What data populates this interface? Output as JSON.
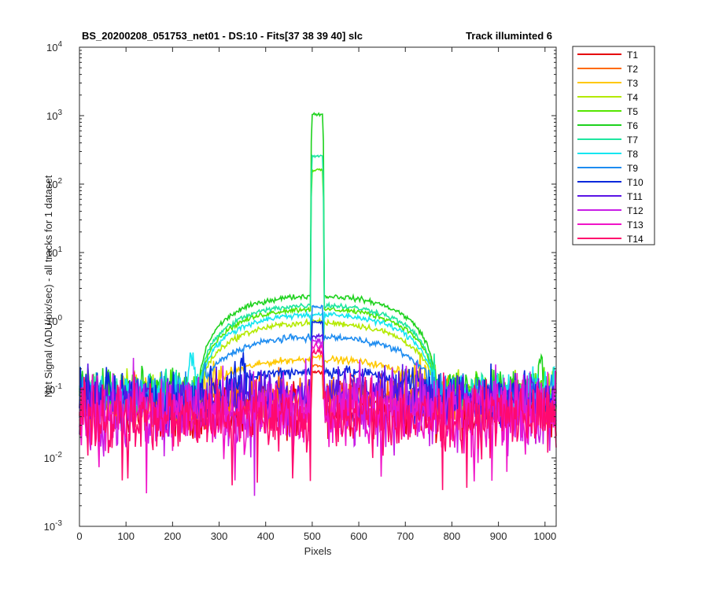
{
  "chart_data": {
    "type": "line",
    "title_left": "BS_20200208_051753_net01 - DS:10 - Fits[37  38  39  40]   slc",
    "title_right": "Track illuminted 6",
    "xlabel": "Pixels",
    "ylabel": "Net Signal (ADU/pix/sec) - all tracks for 1 dataset",
    "xlim": [
      0,
      1024
    ],
    "ylim": [
      0.001,
      10000
    ],
    "yscale": "log",
    "x_ticks": [
      0,
      100,
      200,
      300,
      400,
      500,
      600,
      700,
      800,
      900,
      1000
    ],
    "y_ticks": [
      {
        "base": "10",
        "exp": "-3",
        "value": 0.001
      },
      {
        "base": "10",
        "exp": "-2",
        "value": 0.01
      },
      {
        "base": "10",
        "exp": "-1",
        "value": 0.1
      },
      {
        "base": "10",
        "exp": "0",
        "value": 1
      },
      {
        "base": "10",
        "exp": "1",
        "value": 10
      },
      {
        "base": "10",
        "exp": "2",
        "value": 100
      },
      {
        "base": "10",
        "exp": "3",
        "value": 1000
      },
      {
        "base": "10",
        "exp": "4",
        "value": 10000
      }
    ],
    "grid": false,
    "legend_position": "outside-right",
    "series": [
      {
        "name": "T1",
        "color": "#e6000a",
        "bg": 0.05,
        "wing": 0,
        "peak": 0.18,
        "noise": 0.28,
        "rough": 0.05
      },
      {
        "name": "T2",
        "color": "#ff6a00",
        "bg": 0.06,
        "wing": 0.015,
        "peak": 0.22,
        "noise": 0.26,
        "rough": 0.06
      },
      {
        "name": "T3",
        "color": "#ffc800",
        "bg": 0.075,
        "wing": 0.2,
        "peak": 0.3,
        "noise": 0.22,
        "rough": 0.07
      },
      {
        "name": "T4",
        "color": "#b4ea00",
        "bg": 0.085,
        "wing": 0.85,
        "peak": 1.0,
        "noise": 0.2,
        "rough": 0.06
      },
      {
        "name": "T5",
        "color": "#55e600",
        "bg": 0.09,
        "wing": 1.4,
        "peak": 160,
        "noise": 0.18,
        "rough": 0.05
      },
      {
        "name": "T6",
        "color": "#1ed21e",
        "bg": 0.1,
        "wing": 2.2,
        "peak": 1050,
        "noise": 0.17,
        "rough": 0.05
      },
      {
        "name": "T7",
        "color": "#1ee6a0",
        "bg": 0.09,
        "wing": 1.6,
        "peak": 260,
        "noise": 0.18,
        "rough": 0.05
      },
      {
        "name": "T8",
        "color": "#14e6f0",
        "bg": 0.085,
        "wing": 1.15,
        "peak": 1.25,
        "noise": 0.2,
        "rough": 0.06
      },
      {
        "name": "T9",
        "color": "#1e8cf0",
        "bg": 0.08,
        "wing": 0.5,
        "peak": 1.6,
        "noise": 0.22,
        "rough": 0.07
      },
      {
        "name": "T10",
        "color": "#0a28dc",
        "bg": 0.075,
        "wing": 0.11,
        "peak": 0.95,
        "noise": 0.25,
        "rough": 0.08
      },
      {
        "name": "T11",
        "color": "#5a14e6",
        "bg": 0.065,
        "wing": 0.03,
        "peak": 0.6,
        "noise": 0.3,
        "rough": 0.09
      },
      {
        "name": "T12",
        "color": "#c81ee6",
        "bg": 0.05,
        "wing": 0.0,
        "peak": 0.5,
        "noise": 0.5,
        "rough": 0.1
      },
      {
        "name": "T13",
        "color": "#f014c8",
        "bg": 0.045,
        "wing": 0.0,
        "peak": 0.42,
        "noise": 0.45,
        "rough": 0.1
      },
      {
        "name": "T14",
        "color": "#ff0a6e",
        "bg": 0.04,
        "wing": 0.0,
        "peak": 0.35,
        "noise": 0.42,
        "rough": 0.1
      }
    ]
  }
}
